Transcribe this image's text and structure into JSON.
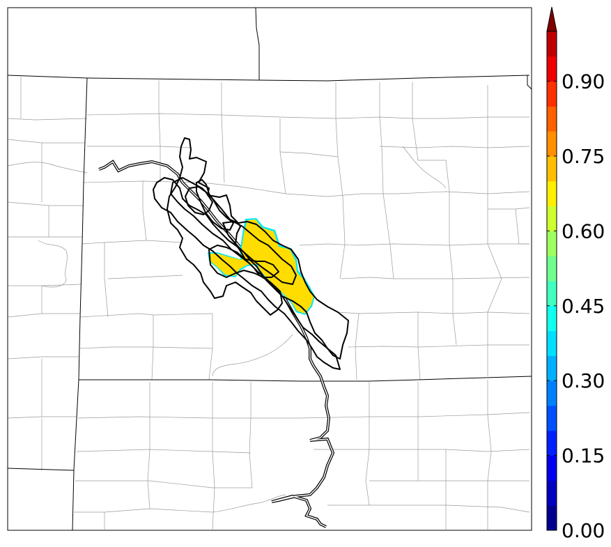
{
  "map": {
    "background_color": "#ffffff",
    "state_line_color": "#000000",
    "county_line_color": "#9a9a9a",
    "track_color": "#000000",
    "swath_color": "#ffdd00",
    "swath_value": 0.65
  },
  "colorbar": {
    "min": 0.0,
    "max": 1.0,
    "extend": "max",
    "levels": [
      0.0,
      0.05,
      0.1,
      0.15,
      0.2,
      0.25,
      0.3,
      0.35,
      0.4,
      0.45,
      0.5,
      0.55,
      0.6,
      0.65,
      0.7,
      0.75,
      0.8,
      0.85,
      0.9,
      0.95,
      1.0
    ],
    "colors": [
      "#00008f",
      "#0000bf",
      "#0000ef",
      "#0020ff",
      "#0050ff",
      "#0080ff",
      "#00b0ff",
      "#00dfff",
      "#10ffef",
      "#40ffbf",
      "#70ff8f",
      "#9fff60",
      "#cfff30",
      "#ffef00",
      "#ffbf00",
      "#ff8f00",
      "#ff6000",
      "#ff3000",
      "#ef0000",
      "#bf0000"
    ],
    "extend_color": "#800000",
    "ticks": [
      {
        "value": 0.0,
        "label": "0.00"
      },
      {
        "value": 0.15,
        "label": "0.15"
      },
      {
        "value": 0.3,
        "label": "0.30"
      },
      {
        "value": 0.45,
        "label": "0.45"
      },
      {
        "value": 0.6,
        "label": "0.60"
      },
      {
        "value": 0.75,
        "label": "0.75"
      },
      {
        "value": 0.9,
        "label": "0.90"
      }
    ]
  }
}
